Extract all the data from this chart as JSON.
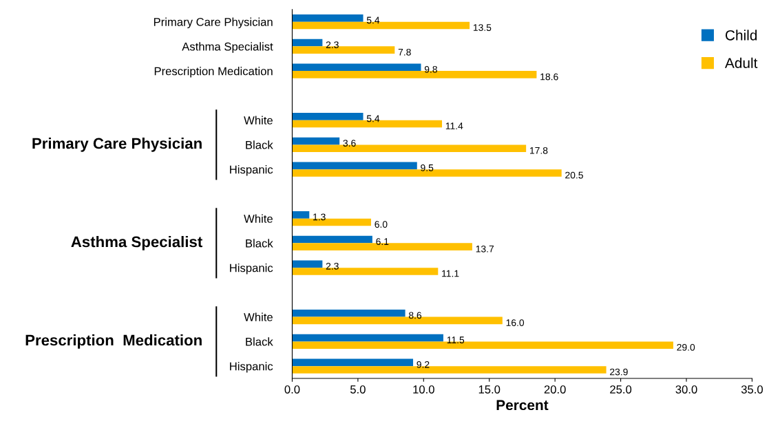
{
  "chart_data": {
    "type": "bar",
    "orientation": "horizontal",
    "xlabel": "Percent",
    "categories": [
      "Primary Care Physician",
      "Asthma Specialist",
      "Prescription Medication",
      null,
      "White",
      "Black",
      "Hispanic",
      null,
      "White",
      "Black",
      "Hispanic",
      null,
      "White",
      "Black",
      "Hispanic"
    ],
    "series": [
      {
        "name": "Child",
        "color": "#0070c0",
        "values": [
          5.4,
          2.3,
          9.8,
          null,
          5.4,
          3.6,
          9.5,
          null,
          1.3,
          6.1,
          2.3,
          null,
          8.6,
          11.5,
          9.2
        ],
        "value_labels": [
          "5.4",
          "2.3",
          "9.8",
          null,
          "5.4",
          "3.6",
          "9.5",
          null,
          "1.3",
          "6.1",
          "2.3",
          null,
          "8.6",
          "11.5",
          "9.2"
        ]
      },
      {
        "name": "Adult",
        "color": "#ffc000",
        "values": [
          13.5,
          7.8,
          18.6,
          null,
          11.4,
          17.8,
          20.5,
          null,
          6.0,
          13.7,
          11.1,
          null,
          16.0,
          29.0,
          23.9
        ],
        "value_labels": [
          "13.5",
          "7.8",
          "18.6",
          null,
          "11.4",
          "17.8",
          "20.5",
          null,
          "6.0",
          "13.7",
          "11.1",
          null,
          "16.0",
          "29.0",
          "23.9"
        ]
      }
    ],
    "annotations": [
      "Primary Care Physician",
      "Asthma Specialist",
      "Prescription  Medication"
    ],
    "xlim": [
      0,
      35
    ],
    "xticks": [
      {
        "value": 0,
        "label": "0.0"
      },
      {
        "value": 5,
        "label": "5.0"
      },
      {
        "value": 10,
        "label": "10.0"
      },
      {
        "value": 15,
        "label": "15.0"
      },
      {
        "value": 20,
        "label": "20.0"
      },
      {
        "value": 25,
        "label": "25.0"
      },
      {
        "value": 30,
        "label": "30.0"
      },
      {
        "value": 35,
        "label": "35.0"
      }
    ],
    "grid": false,
    "legend": "top right"
  }
}
